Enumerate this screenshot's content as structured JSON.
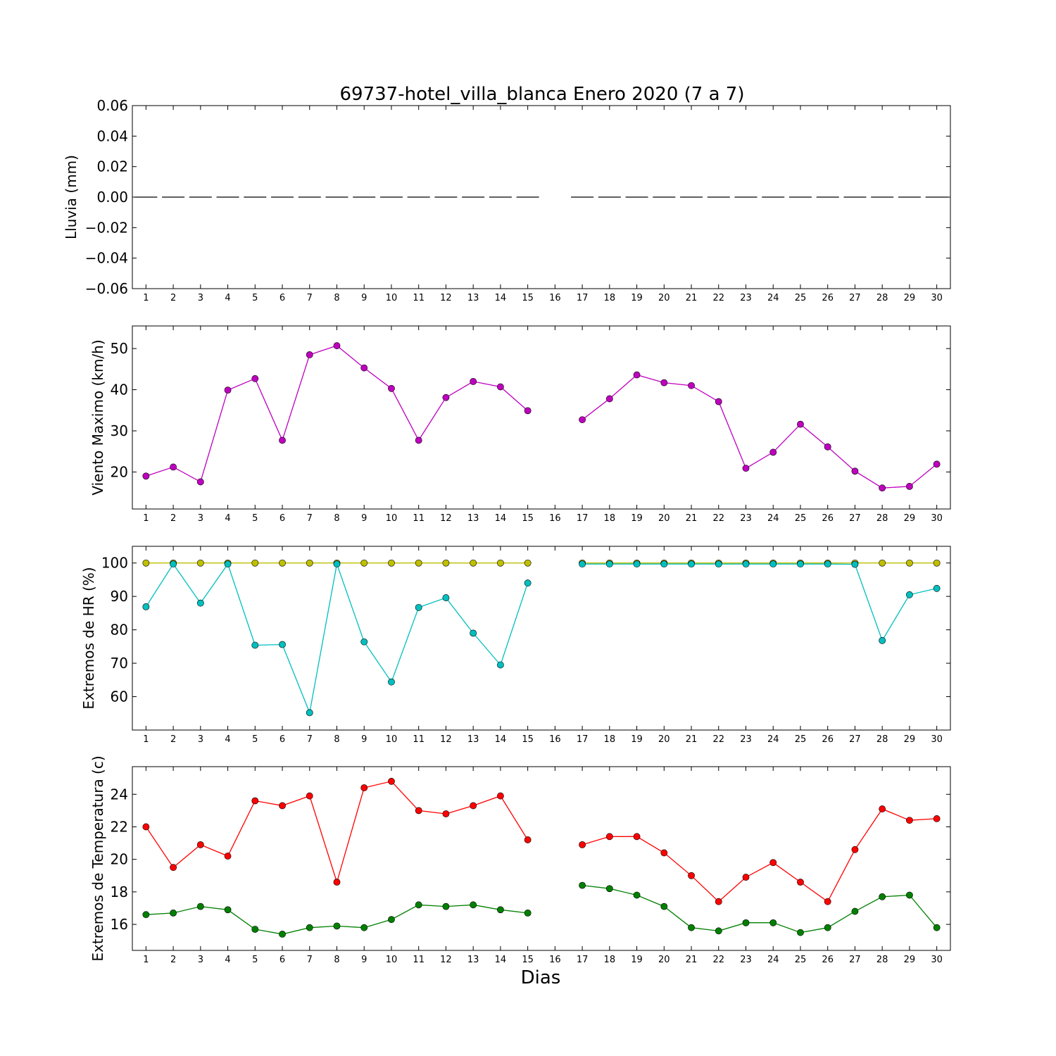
{
  "figure": {
    "title": "69737-hotel_villa_blanca Enero 2020  (7 a 7)",
    "xlabel": "Dias"
  },
  "chart_data": [
    {
      "type": "line",
      "ylabel": "Lluvia (mm)",
      "xlim": [
        0.5,
        30.5
      ],
      "ylim": [
        -0.06,
        0.06
      ],
      "yticks": [
        0.06,
        0.04,
        0.02,
        0.0,
        -0.02,
        -0.04,
        -0.06
      ],
      "ytick_labels": [
        "0.06",
        "0.04",
        "0.02",
        "0.00",
        "−0.02",
        "−0.04",
        "−0.06"
      ],
      "x": [
        1,
        2,
        3,
        4,
        5,
        6,
        7,
        8,
        9,
        10,
        11,
        12,
        13,
        14,
        15,
        16,
        17,
        18,
        19,
        20,
        21,
        22,
        23,
        24,
        25,
        26,
        27,
        28,
        29,
        30
      ],
      "series": [
        {
          "color": "#000000",
          "marker": "hline",
          "values": [
            0,
            0,
            0,
            0,
            0,
            0,
            0,
            0,
            0,
            0,
            0,
            0,
            0,
            0,
            0,
            null,
            0,
            0,
            0,
            0,
            0,
            0,
            0,
            0,
            0,
            0,
            0,
            0,
            0,
            0
          ]
        }
      ]
    },
    {
      "type": "line",
      "ylabel": "Viento Maximo (km/h)",
      "xlim": [
        0.5,
        30.5
      ],
      "ylim": [
        11,
        55.5
      ],
      "yticks": [
        20,
        30,
        40,
        50
      ],
      "ytick_labels": [
        "20",
        "30",
        "40",
        "50"
      ],
      "x": [
        1,
        2,
        3,
        4,
        5,
        6,
        7,
        8,
        9,
        10,
        11,
        12,
        13,
        14,
        15,
        16,
        17,
        18,
        19,
        20,
        21,
        22,
        23,
        24,
        25,
        26,
        27,
        28,
        29,
        30
      ],
      "series": [
        {
          "color": "#bf00bf",
          "marker": "circle",
          "values": [
            19.0,
            21.2,
            17.6,
            39.9,
            42.7,
            27.7,
            48.5,
            50.7,
            45.3,
            40.3,
            27.7,
            38.1,
            42.0,
            40.7,
            34.9,
            null,
            32.7,
            37.8,
            43.6,
            41.7,
            41.0,
            37.1,
            20.9,
            24.8,
            31.6,
            26.1,
            20.2,
            16.1,
            16.5,
            21.9
          ]
        }
      ]
    },
    {
      "type": "line",
      "ylabel": "Extremos de HR (%)",
      "xlim": [
        0.5,
        30.5
      ],
      "ylim": [
        50,
        105
      ],
      "yticks": [
        60,
        70,
        80,
        90,
        100
      ],
      "ytick_labels": [
        "60",
        "70",
        "80",
        "90",
        "100"
      ],
      "x": [
        1,
        2,
        3,
        4,
        5,
        6,
        7,
        8,
        9,
        10,
        11,
        12,
        13,
        14,
        15,
        16,
        17,
        18,
        19,
        20,
        21,
        22,
        23,
        24,
        25,
        26,
        27,
        28,
        29,
        30
      ],
      "series": [
        {
          "color": "#bfbf00",
          "marker": "circle",
          "values": [
            100,
            100,
            100,
            100,
            100,
            100,
            100,
            100,
            100,
            100,
            100,
            100,
            100,
            100,
            100,
            null,
            100,
            100,
            100,
            100,
            100,
            100,
            100,
            100,
            100,
            100,
            100,
            100,
            100,
            100
          ]
        },
        {
          "color": "#00bfbf",
          "marker": "circle",
          "values": [
            86.9,
            99.7,
            88.0,
            99.7,
            75.4,
            75.6,
            55.2,
            99.7,
            76.4,
            64.4,
            86.7,
            89.6,
            79.0,
            69.5,
            94.0,
            null,
            99.7,
            99.7,
            99.7,
            99.7,
            99.7,
            99.7,
            99.7,
            99.7,
            99.7,
            99.7,
            99.6,
            76.8,
            90.5,
            92.4
          ]
        }
      ]
    },
    {
      "type": "line",
      "ylabel": "Extremos de Temperatura (c)",
      "xlim": [
        0.5,
        30.5
      ],
      "ylim": [
        14.4,
        25.7
      ],
      "yticks": [
        16,
        18,
        20,
        22,
        24
      ],
      "ytick_labels": [
        "16",
        "18",
        "20",
        "22",
        "24"
      ],
      "x": [
        1,
        2,
        3,
        4,
        5,
        6,
        7,
        8,
        9,
        10,
        11,
        12,
        13,
        14,
        15,
        16,
        17,
        18,
        19,
        20,
        21,
        22,
        23,
        24,
        25,
        26,
        27,
        28,
        29,
        30
      ],
      "series": [
        {
          "color": "#ff0000",
          "marker": "circle",
          "values": [
            22.0,
            19.5,
            20.9,
            20.2,
            23.6,
            23.3,
            23.9,
            18.6,
            24.4,
            24.8,
            23.0,
            22.8,
            23.3,
            23.9,
            21.2,
            null,
            20.9,
            21.4,
            21.4,
            20.4,
            19.0,
            17.4,
            18.9,
            19.8,
            18.6,
            17.4,
            20.6,
            23.1,
            22.4,
            22.5
          ]
        },
        {
          "color": "#008000",
          "marker": "circle",
          "values": [
            16.6,
            16.7,
            17.1,
            16.9,
            15.7,
            15.4,
            15.8,
            15.9,
            15.8,
            16.3,
            17.2,
            17.1,
            17.2,
            16.9,
            16.7,
            null,
            18.4,
            18.2,
            17.8,
            17.1,
            15.8,
            15.6,
            16.1,
            16.1,
            15.5,
            15.8,
            16.8,
            17.7,
            17.8,
            15.8
          ]
        }
      ]
    }
  ]
}
